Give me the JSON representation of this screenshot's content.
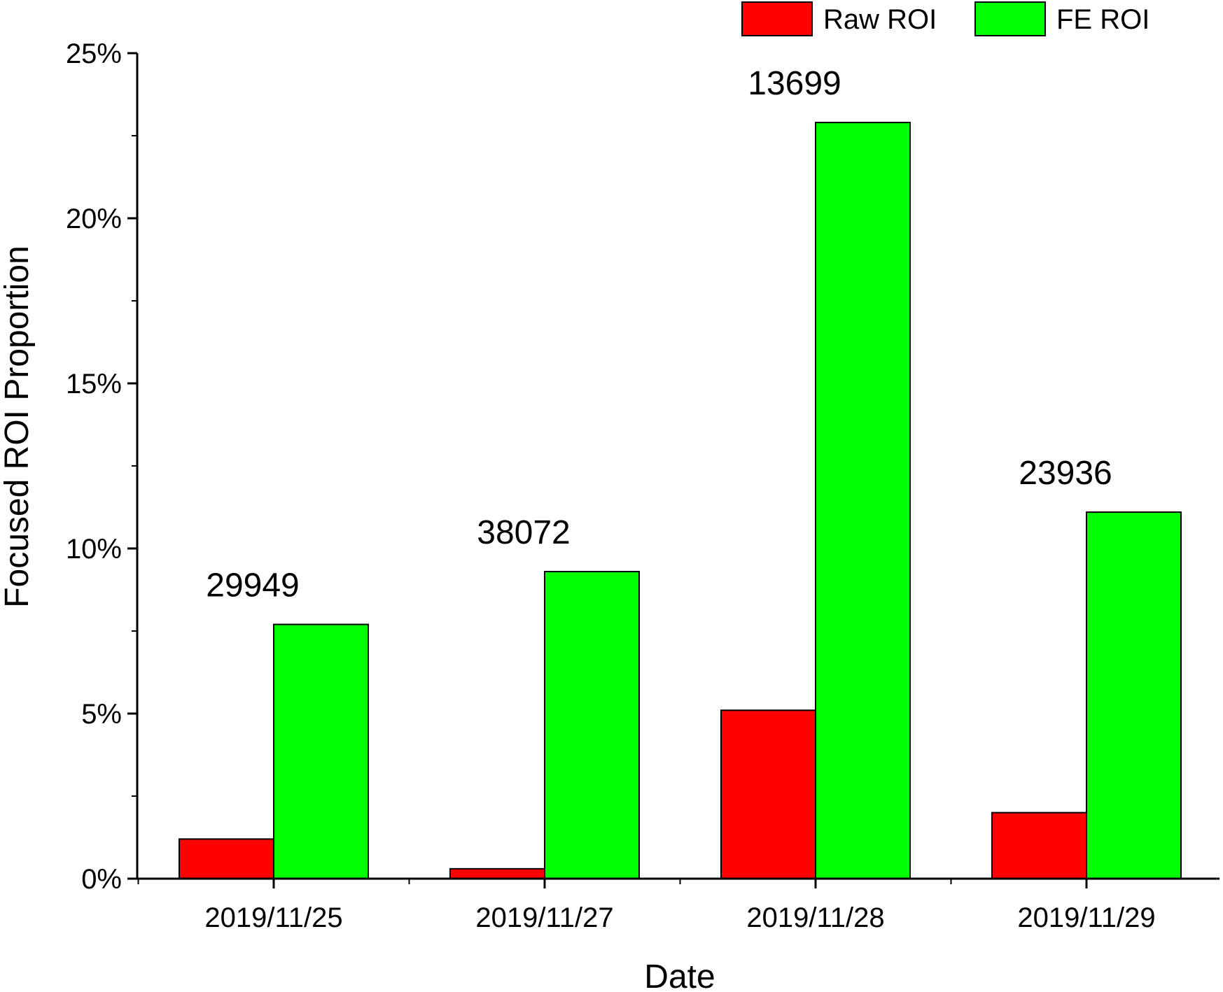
{
  "chart_data": {
    "type": "bar",
    "title": "",
    "xlabel": "Date",
    "ylabel": "Focused ROI Proportion",
    "categories": [
      "2019/11/25",
      "2019/11/27",
      "2019/11/28",
      "2019/11/29"
    ],
    "series": [
      {
        "name": "Raw ROI",
        "color": "#ff0000",
        "values": [
          1.2,
          0.3,
          5.1,
          2.0
        ]
      },
      {
        "name": "FE ROI",
        "color": "#00ff00",
        "values": [
          7.7,
          9.3,
          22.9,
          11.1
        ]
      }
    ],
    "data_labels": [
      "29949",
      "38072",
      "13699",
      "23936"
    ],
    "ylim": [
      0,
      25
    ],
    "yticks": [
      0,
      5,
      10,
      15,
      20,
      25
    ],
    "ytick_labels": [
      "0%",
      "5%",
      "10%",
      "15%",
      "20%",
      "25%"
    ],
    "grid": false,
    "legend_position": "top-right"
  }
}
